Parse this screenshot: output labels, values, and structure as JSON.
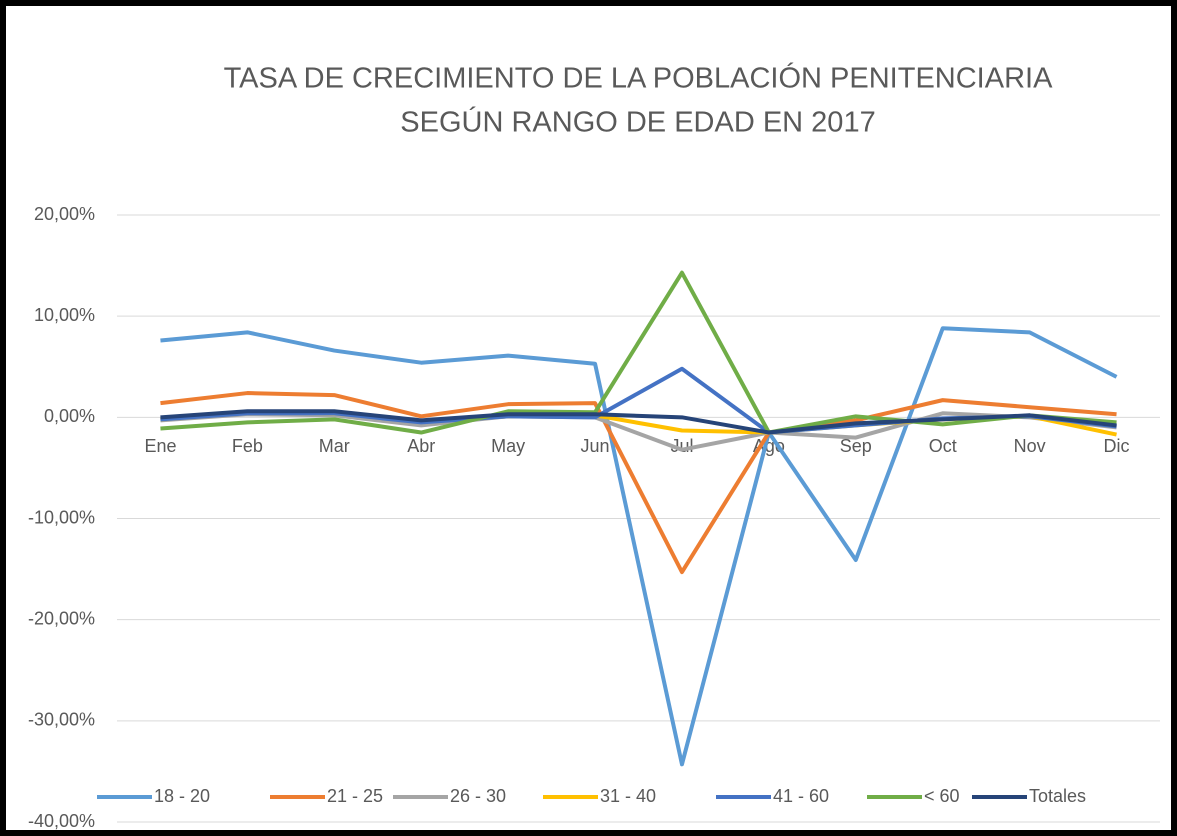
{
  "chart_data": {
    "type": "line",
    "title": [
      "TASA DE CRECIMIENTO DE LA POBLACIÓN PENITENCIARIA",
      "SEGÚN RANGO DE EDAD EN 2017"
    ],
    "categories": [
      "Ene",
      "Feb",
      "Mar",
      "Abr",
      "May",
      "Jun",
      "Jul",
      "Ago",
      "Sep",
      "Oct",
      "Nov",
      "Dic"
    ],
    "series": [
      {
        "name": "18 - 20",
        "color": "#5b9bd5",
        "values": [
          7.6,
          8.4,
          6.6,
          5.4,
          6.1,
          5.3,
          -34.3,
          -1.5,
          -14.1,
          8.8,
          8.4,
          4.0
        ]
      },
      {
        "name": "21 - 25",
        "color": "#ed7d31",
        "values": [
          1.4,
          2.4,
          2.2,
          0.1,
          1.3,
          1.4,
          -15.3,
          -1.5,
          -0.3,
          1.7,
          1.0,
          0.3
        ]
      },
      {
        "name": "26 - 30",
        "color": "#a5a5a5",
        "values": [
          -0.3,
          0.3,
          0.2,
          -0.8,
          0.1,
          0.0,
          -3.2,
          -1.5,
          -2.0,
          0.4,
          0.0,
          -1.0
        ]
      },
      {
        "name": "31 - 40",
        "color": "#ffc000",
        "values": [
          -0.2,
          0.5,
          0.4,
          -0.4,
          0.1,
          0.2,
          -1.3,
          -1.5,
          -0.8,
          -0.2,
          0.1,
          -1.7
        ]
      },
      {
        "name": "41 - 60",
        "color": "#4472c4",
        "values": [
          -0.2,
          0.4,
          0.4,
          -0.5,
          0.1,
          0.0,
          4.8,
          -1.5,
          -0.8,
          -0.1,
          0.1,
          -0.9
        ]
      },
      {
        "name": "< 60",
        "color": "#70ad47",
        "values": [
          -1.1,
          -0.5,
          -0.2,
          -1.5,
          0.6,
          0.5,
          14.3,
          -1.5,
          0.1,
          -0.7,
          0.2,
          -0.5
        ]
      },
      {
        "name": "Totales",
        "color": "#264478",
        "values": [
          0.0,
          0.6,
          0.6,
          -0.3,
          0.3,
          0.3,
          0.0,
          -1.5,
          -0.6,
          -0.2,
          0.2,
          -0.8
        ]
      }
    ],
    "ylim": [
      -40,
      20
    ],
    "yticks": [
      {
        "value": 20,
        "label": "20,00%"
      },
      {
        "value": 10,
        "label": "10,00%"
      },
      {
        "value": 0,
        "label": "0,00%"
      },
      {
        "value": -10,
        "label": "-10,00%"
      },
      {
        "value": -20,
        "label": "-20,00%"
      },
      {
        "value": -30,
        "label": "-30,00%"
      },
      {
        "value": -40,
        "label": "-40,00%"
      }
    ],
    "grid": true,
    "legend": "bottom"
  }
}
